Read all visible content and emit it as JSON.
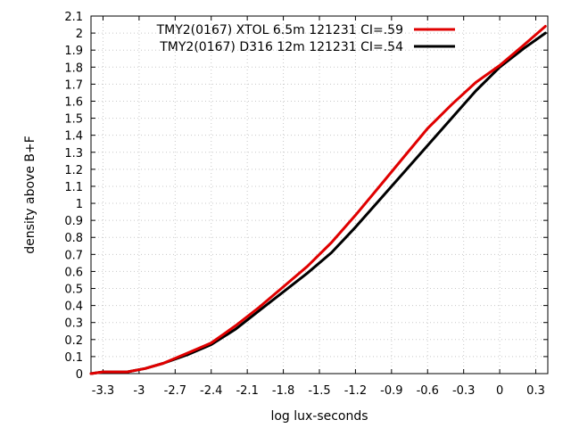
{
  "chart_data": {
    "type": "line",
    "xlabel": "log lux-seconds",
    "ylabel": "density above B+F",
    "xlim": [
      -3.4,
      0.4
    ],
    "ylim": [
      0,
      2.1
    ],
    "grid": true,
    "legend_position": "top-right",
    "x_ticks": [
      -3.3,
      -3.0,
      -2.7,
      -2.4,
      -2.1,
      -1.8,
      -1.5,
      -1.2,
      -0.9,
      -0.6,
      -0.3,
      0,
      0.3
    ],
    "x_tick_labels": [
      "-3.3",
      "-3",
      "-2.7",
      "-2.4",
      "-2.1",
      "-1.8",
      "-1.5",
      "-1.2",
      "-0.9",
      "-0.6",
      "-0.3",
      "0",
      "0.3"
    ],
    "y_ticks": [
      0,
      0.1,
      0.2,
      0.3,
      0.4,
      0.5,
      0.6,
      0.7,
      0.8,
      0.9,
      1.0,
      1.1,
      1.2,
      1.3,
      1.4,
      1.5,
      1.6,
      1.7,
      1.8,
      1.9,
      2.0,
      2.1
    ],
    "y_tick_labels": [
      "0",
      "0.1",
      "0.2",
      "0.3",
      "0.4",
      "0.5",
      "0.6",
      "0.7",
      "0.8",
      "0.9",
      "1",
      "1.1",
      "1.2",
      "1.3",
      "1.4",
      "1.5",
      "1.6",
      "1.7",
      "1.8",
      "1.9",
      "2",
      "2.1"
    ],
    "series": [
      {
        "name": "TMY2(0167) XTOL 6.5m 121231 CI=.59",
        "color": "#e00000",
        "x": [
          -3.4,
          -3.3,
          -3.1,
          -2.95,
          -2.8,
          -2.6,
          -2.4,
          -2.2,
          -2.0,
          -1.8,
          -1.6,
          -1.4,
          -1.2,
          -1.0,
          -0.8,
          -0.6,
          -0.4,
          -0.2,
          0.0,
          0.2,
          0.38
        ],
        "y": [
          0.0,
          0.01,
          0.01,
          0.03,
          0.06,
          0.12,
          0.18,
          0.28,
          0.39,
          0.51,
          0.63,
          0.77,
          0.93,
          1.1,
          1.27,
          1.44,
          1.58,
          1.71,
          1.81,
          1.93,
          2.04
        ]
      },
      {
        "name": "TMY2(0167) D316 12m 121231 CI=.54",
        "color": "#000000",
        "x": [
          -3.4,
          -3.3,
          -3.1,
          -2.95,
          -2.8,
          -2.6,
          -2.4,
          -2.2,
          -2.0,
          -1.8,
          -1.6,
          -1.4,
          -1.2,
          -1.0,
          -0.8,
          -0.6,
          -0.4,
          -0.2,
          0.0,
          0.2,
          0.38
        ],
        "y": [
          0.0,
          0.01,
          0.01,
          0.03,
          0.06,
          0.11,
          0.17,
          0.26,
          0.37,
          0.48,
          0.59,
          0.71,
          0.86,
          1.02,
          1.18,
          1.34,
          1.5,
          1.66,
          1.8,
          1.91,
          2.0
        ]
      }
    ]
  }
}
